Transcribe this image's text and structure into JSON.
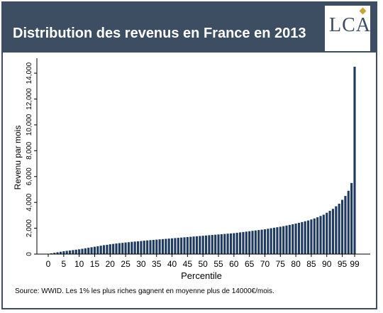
{
  "header": {
    "title": "Distribution des revenus en France en 2013",
    "logo_text": "LCA",
    "background": "#3d4e62",
    "title_color": "#ffffff"
  },
  "source_note": "Source: WWID. Les 1% les plus riches gagnent en moyenne plus de 14000€/mois.",
  "chart_data": {
    "type": "bar",
    "xlabel": "Percentile",
    "ylabel": "Revenu par mois",
    "ylim": [
      0,
      14500
    ],
    "yticks": [
      0,
      2000,
      4000,
      6000,
      8000,
      10000,
      12000,
      14000
    ],
    "ytick_labels": [
      "0",
      "2,000",
      "4,000",
      "6,000",
      "8,000",
      "10,000",
      "12,000",
      "14,000"
    ],
    "xticks": [
      0,
      5,
      10,
      15,
      20,
      25,
      30,
      35,
      40,
      45,
      50,
      55,
      60,
      65,
      70,
      75,
      80,
      85,
      90,
      95,
      99
    ],
    "xtick_labels": [
      "0",
      "5",
      "10",
      "15",
      "20",
      "25",
      "30",
      "35",
      "40",
      "45",
      "50",
      "55",
      "60",
      "65",
      "70",
      "75",
      "80",
      "85",
      "90",
      "95",
      "99"
    ],
    "bar_color": "#1f3a5f",
    "grid": false,
    "percentiles": [
      0,
      1,
      2,
      3,
      4,
      5,
      6,
      7,
      8,
      9,
      10,
      11,
      12,
      13,
      14,
      15,
      16,
      17,
      18,
      19,
      20,
      21,
      22,
      23,
      24,
      25,
      26,
      27,
      28,
      29,
      30,
      31,
      32,
      33,
      34,
      35,
      36,
      37,
      38,
      39,
      40,
      41,
      42,
      43,
      44,
      45,
      46,
      47,
      48,
      49,
      50,
      51,
      52,
      53,
      54,
      55,
      56,
      57,
      58,
      59,
      60,
      61,
      62,
      63,
      64,
      65,
      66,
      67,
      68,
      69,
      70,
      71,
      72,
      73,
      74,
      75,
      76,
      77,
      78,
      79,
      80,
      81,
      82,
      83,
      84,
      85,
      86,
      87,
      88,
      89,
      90,
      91,
      92,
      93,
      94,
      95,
      96,
      97,
      98,
      99
    ],
    "values": [
      20,
      60,
      100,
      140,
      180,
      220,
      250,
      280,
      310,
      340,
      370,
      410,
      450,
      490,
      530,
      570,
      610,
      650,
      690,
      720,
      760,
      790,
      820,
      850,
      870,
      900,
      920,
      950,
      970,
      990,
      1010,
      1040,
      1060,
      1080,
      1100,
      1120,
      1140,
      1160,
      1180,
      1200,
      1220,
      1240,
      1260,
      1280,
      1300,
      1320,
      1340,
      1360,
      1380,
      1400,
      1420,
      1440,
      1460,
      1480,
      1500,
      1520,
      1540,
      1560,
      1580,
      1600,
      1620,
      1650,
      1680,
      1710,
      1740,
      1770,
      1800,
      1830,
      1860,
      1890,
      1920,
      1960,
      2000,
      2040,
      2080,
      2120,
      2160,
      2210,
      2260,
      2310,
      2360,
      2420,
      2480,
      2540,
      2600,
      2680,
      2760,
      2850,
      2950,
      3050,
      3200,
      3350,
      3500,
      3700,
      3900,
      4200,
      4500,
      4900,
      5500,
      14500
    ]
  }
}
